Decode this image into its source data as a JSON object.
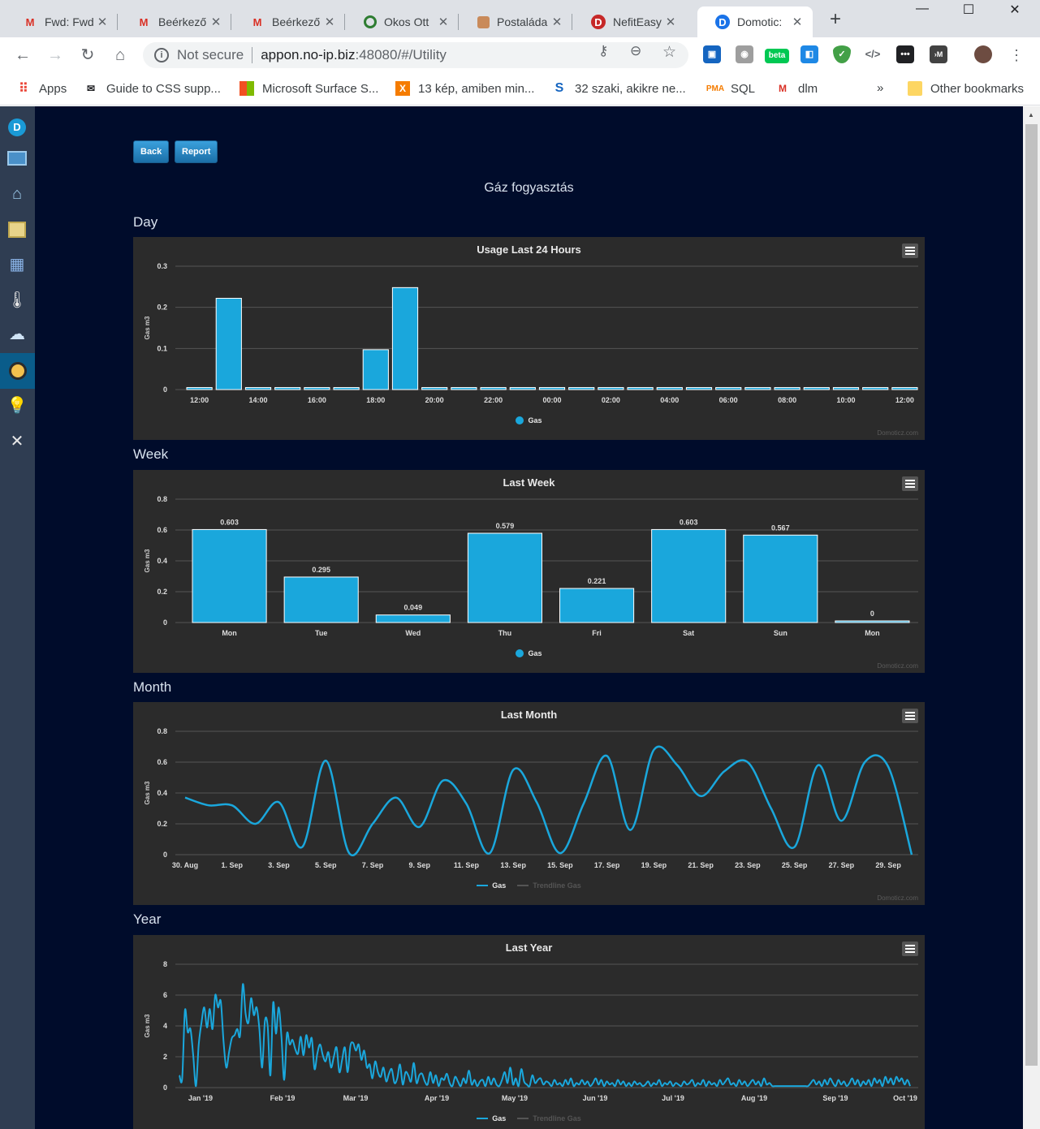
{
  "browser": {
    "tabs": [
      {
        "label": "Fwd: Fwd",
        "icon": "gmail-icon"
      },
      {
        "label": "Beérkező",
        "icon": "gmail-icon"
      },
      {
        "label": "Beérkező",
        "icon": "gmail-icon"
      },
      {
        "label": "Okos Ott",
        "icon": "okos-icon"
      },
      {
        "label": "Postaláda",
        "icon": "box-icon"
      },
      {
        "label": "NefitEasy",
        "icon": "nefit-icon"
      },
      {
        "label": "Domotic:",
        "icon": "domoticz-icon"
      }
    ],
    "address": {
      "security": "Not secure",
      "host": "appon.no-ip.biz",
      "path": ":48080/#/Utility"
    },
    "bookmarks": [
      {
        "label": "Apps",
        "icon": "apps-grid-icon"
      },
      {
        "label": "Guide to CSS supp...",
        "icon": "mail-icon"
      },
      {
        "label": "Microsoft Surface S...",
        "icon": "microsoft-icon"
      },
      {
        "label": "13 kép, amiben min...",
        "icon": "x-icon"
      },
      {
        "label": "32 szaki, akikre ne...",
        "icon": "s-icon"
      },
      {
        "label": "SQL",
        "icon": "pma-icon"
      },
      {
        "label": "dlm",
        "icon": "gmail-icon"
      }
    ],
    "bookmarks_more": "»",
    "other_bookmarks": "Other bookmarks",
    "ext_beta": "beta"
  },
  "page": {
    "back_label": "Back",
    "report_label": "Report",
    "title": "Gáz fogyasztás",
    "sections": {
      "day": "Day",
      "week": "Week",
      "month": "Month",
      "year": "Year"
    },
    "credit": "Domoticz.com",
    "legend_gas": "Gas",
    "legend_trend": "Trendline Gas",
    "accent": "#1aa7dc",
    "background": "#000c2b"
  },
  "chart_data": [
    {
      "type": "bar",
      "title": "Usage Last 24 Hours",
      "ylabel": "Gas m3",
      "ylim": [
        0,
        0.3
      ],
      "yticks": [
        0,
        0.1,
        0.2,
        0.3
      ],
      "xticks": [
        "12:00",
        "14:00",
        "16:00",
        "18:00",
        "20:00",
        "22:00",
        "00:00",
        "02:00",
        "04:00",
        "06:00",
        "08:00",
        "10:00",
        "12:00"
      ],
      "values": [
        0.005,
        0.222,
        0.005,
        0.005,
        0.005,
        0.005,
        0.097,
        0.248,
        0.005,
        0.005,
        0.005,
        0.005,
        0.005,
        0.005,
        0.005,
        0.005,
        0.005,
        0.005,
        0.005,
        0.005,
        0.005,
        0.005,
        0.005,
        0.005,
        0.005
      ],
      "series": [
        {
          "name": "Gas"
        }
      ]
    },
    {
      "type": "bar",
      "title": "Last Week",
      "ylabel": "Gas m3",
      "ylim": [
        0,
        0.8
      ],
      "yticks": [
        0,
        0.2,
        0.4,
        0.6,
        0.8
      ],
      "categories": [
        "Mon",
        "Tue",
        "Wed",
        "Thu",
        "Fri",
        "Sat",
        "Sun",
        "Mon"
      ],
      "values": [
        0.603,
        0.295,
        0.049,
        0.579,
        0.221,
        0.603,
        0.567,
        0
      ],
      "labels": [
        "0.603",
        "0.295",
        "0.049",
        "0.579",
        "0.221",
        "0.603",
        "0.567",
        "0"
      ],
      "series": [
        {
          "name": "Gas"
        }
      ]
    },
    {
      "type": "line",
      "title": "Last Month",
      "ylabel": "Gas m3",
      "ylim": [
        0,
        0.8
      ],
      "yticks": [
        0,
        0.2,
        0.4,
        0.6,
        0.8
      ],
      "xticks": [
        "30. Aug",
        "1. Sep",
        "3. Sep",
        "5. Sep",
        "7. Sep",
        "9. Sep",
        "11. Sep",
        "13. Sep",
        "15. Sep",
        "17. Sep",
        "19. Sep",
        "21. Sep",
        "23. Sep",
        "25. Sep",
        "27. Sep",
        "29. Sep"
      ],
      "values": [
        0.37,
        0.32,
        0.32,
        0.2,
        0.34,
        0.05,
        0.61,
        0.01,
        0.2,
        0.37,
        0.18,
        0.48,
        0.33,
        0.01,
        0.55,
        0.34,
        0.01,
        0.33,
        0.64,
        0.16,
        0.68,
        0.58,
        0.38,
        0.54,
        0.6,
        0.3,
        0.05,
        0.58,
        0.22,
        0.6,
        0.57,
        0.0
      ],
      "series": [
        {
          "name": "Gas"
        },
        {
          "name": "Trendline Gas"
        }
      ]
    },
    {
      "type": "line",
      "title": "Last Year",
      "ylabel": "Gas m3",
      "ylim": [
        0,
        8
      ],
      "yticks": [
        0,
        2,
        4,
        6,
        8
      ],
      "xticks": [
        "Jan '19",
        "Feb '19",
        "Mar '19",
        "Apr '19",
        "May '19",
        "Jun '19",
        "Jul '19",
        "Aug '19",
        "Sep '19",
        "Oct '19"
      ],
      "values": [
        0.8,
        0.6,
        5.0,
        3.6,
        3.8,
        2.1,
        0.1,
        2.8,
        4.2,
        5.2,
        3.9,
        5.1,
        3.8,
        6.0,
        5.2,
        5.6,
        3.0,
        1.3,
        2.3,
        3.2,
        3.4,
        3.8,
        3.4,
        6.7,
        4.8,
        4.2,
        5.8,
        4.7,
        5.2,
        3.8,
        1.3,
        4.3,
        4.0,
        0.8,
        5.5,
        3.5,
        5.2,
        3.3,
        0.5,
        3.5,
        2.8,
        3.1,
        2.5,
        2.2,
        3.3,
        2.1,
        3.4,
        2.6,
        3.2,
        1.2,
        2.2,
        2.8,
        2.1,
        1.7,
        2.3,
        1.3,
        2.0,
        2.6,
        1.0,
        1.8,
        2.6,
        1.0,
        2.7,
        2.9,
        2.4,
        2.8,
        1.8,
        2.4,
        1.3,
        1.5,
        0.6,
        1.7,
        1.0,
        0.7,
        1.3,
        0.4,
        0.9,
        1.2,
        0.3,
        0.6,
        1.5,
        0.2,
        1.0,
        0.8,
        0.4,
        1.6,
        0.3,
        0.8,
        0.9,
        0.4,
        0.2,
        1.0,
        0.3,
        0.8,
        0.1,
        0.6,
        0.5,
        0.9,
        0.3,
        0.1,
        0.7,
        0.4,
        0.1,
        0.6,
        0.3,
        1.1,
        0.2,
        0.5,
        0.1,
        0.4,
        0.5,
        0.1,
        0.7,
        0.2,
        0.6,
        0.2,
        0.1,
        0.5,
        1.0,
        0.3,
        1.3,
        0.2,
        0.6,
        0.1,
        1.2,
        0.4,
        0.2,
        0.1,
        0.8,
        0.3,
        0.5,
        0.6,
        0.2,
        0.4,
        0.3,
        0.1,
        0.5,
        0.2,
        0.3,
        0.1,
        0.5,
        0.2,
        0.6,
        0.1,
        0.3,
        0.2,
        0.5,
        0.2,
        0.4,
        0.1,
        0.3,
        0.6,
        0.2,
        0.5,
        0.1,
        0.4,
        0.2,
        0.3,
        0.1,
        0.5,
        0.2,
        0.4,
        0.1,
        0.3,
        0.1,
        0.4,
        0.2,
        0.3,
        0.1,
        0.2,
        0.4,
        0.1,
        0.3,
        0.2,
        0.5,
        0.1,
        0.3,
        0.2,
        0.4,
        0.1,
        0.3,
        0.2,
        0.1,
        0.4,
        0.2,
        0.3,
        0.5,
        0.1,
        0.3,
        0.2,
        0.5,
        0.1,
        0.4,
        0.2,
        0.3,
        0.1,
        0.5,
        0.2,
        0.4,
        0.6,
        0.2,
        0.3,
        0.1,
        0.5,
        0.2,
        0.4,
        0.1,
        0.3,
        0.5,
        0.2,
        0.4,
        0.1,
        0.6,
        0.2,
        0.3,
        0.1,
        0.1,
        0.1,
        0.1,
        0.1,
        0.1,
        0.1,
        0.1,
        0.1,
        0.1,
        0.1,
        0.1,
        0.1,
        0.1,
        0.3,
        0.5,
        0.2,
        0.4,
        0.1,
        0.5,
        0.2,
        0.6,
        0.3,
        0.1,
        0.5,
        0.2,
        0.4,
        0.1,
        0.3,
        0.6,
        0.2,
        0.5,
        0.1,
        0.4,
        0.2,
        0.5,
        0.1,
        0.6,
        0.3,
        0.5,
        0.1,
        0.7,
        0.3,
        0.6,
        0.2,
        0.7,
        0.4,
        0.6,
        0.2,
        0.5,
        0.1
      ],
      "series": [
        {
          "name": "Gas"
        },
        {
          "name": "Trendline Gas"
        }
      ]
    }
  ]
}
